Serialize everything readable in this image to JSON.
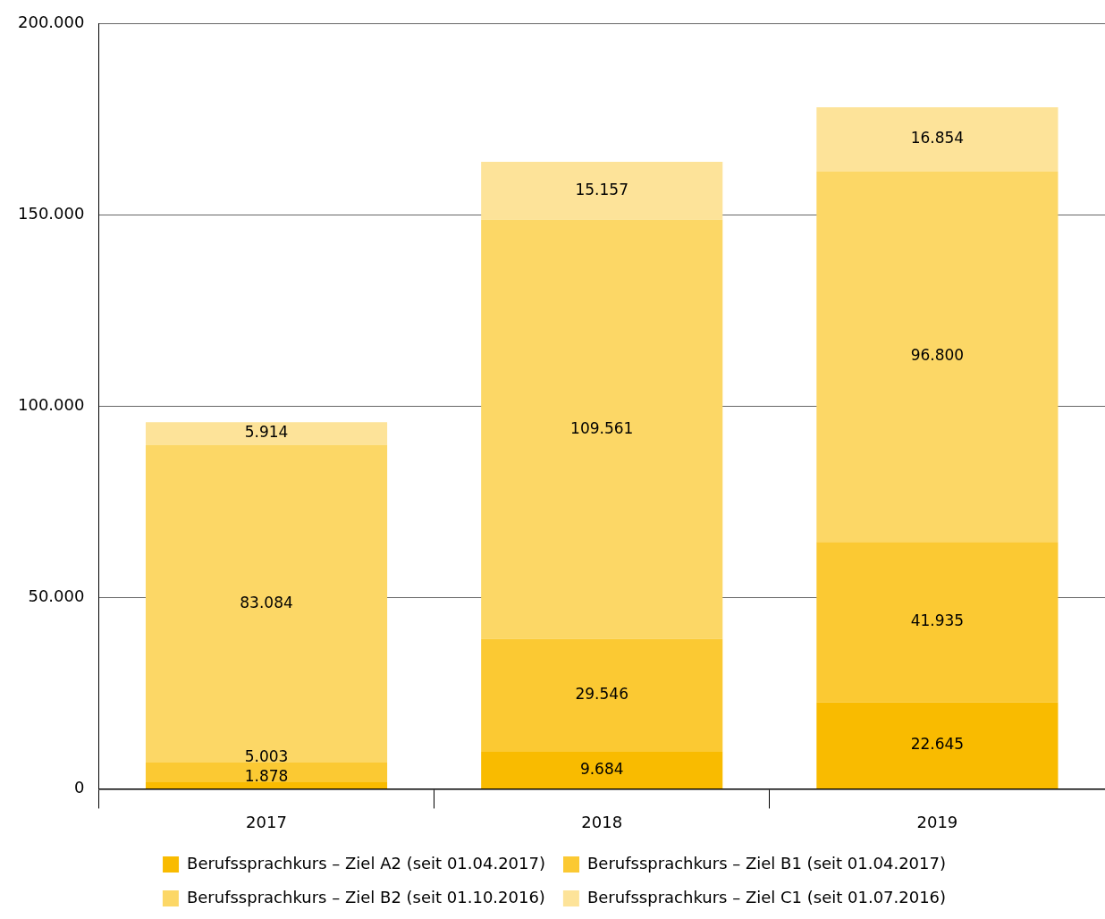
{
  "chart_data": {
    "type": "bar",
    "stacked": true,
    "categories": [
      "2017",
      "2018",
      "2019"
    ],
    "series": [
      {
        "name": "Berufssprachkurs – Ziel A2 (seit 01.04.2017)",
        "color": "#f9bb00",
        "values": [
          1878,
          9684,
          22645
        ],
        "value_labels": [
          "1.878",
          "9.684",
          "22.645"
        ]
      },
      {
        "name": "Berufssprachkurs – Ziel B1 (seit 01.04.2017)",
        "color": "#fbc933",
        "values": [
          5003,
          29546,
          41935
        ],
        "value_labels": [
          "5.003",
          "29.546",
          "41.935"
        ]
      },
      {
        "name": "Berufssprachkurs – Ziel B2 (seit 01.10.2016)",
        "color": "#fcd766",
        "values": [
          83084,
          109561,
          96800
        ],
        "value_labels": [
          "83.084",
          "109.561",
          "96.800"
        ]
      },
      {
        "name": "Berufssprachkurs – Ziel C1 (seit 01.07.2016)",
        "color": "#fde399",
        "values": [
          5914,
          15157,
          16854
        ],
        "value_labels": [
          "5.914",
          "15.157",
          "16.854"
        ]
      }
    ],
    "ylim": [
      0,
      200000
    ],
    "yticks": [
      {
        "value": 0,
        "label": "0"
      },
      {
        "value": 50000,
        "label": "50.000"
      },
      {
        "value": 100000,
        "label": "100.000"
      },
      {
        "value": 150000,
        "label": "150.000"
      },
      {
        "value": 200000,
        "label": "200.000"
      }
    ],
    "grid": "y",
    "legend": "bottom"
  }
}
